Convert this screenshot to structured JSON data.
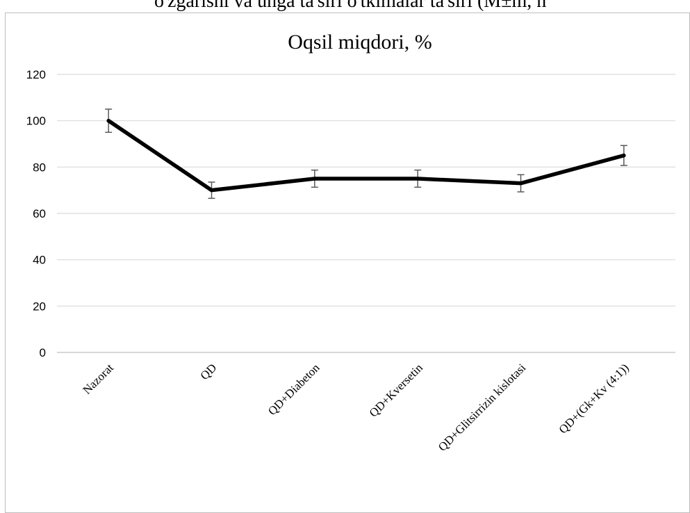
{
  "page": {
    "top_caption": "o'zgarishi va unga ta'siri o'tkimalar ta'siri (M±m, n"
  },
  "chart_data": {
    "type": "line",
    "title": "Oqsil miqdori, %",
    "xlabel": "",
    "ylabel": "",
    "categories": [
      "Nazorat",
      "QD",
      "QD+Diabeton",
      "QD+Kversetin",
      "QD+Glitsirrizin kislotasi",
      "QD+(Gk+Kv (4:1))"
    ],
    "series": [
      {
        "values": [
          100,
          70,
          75,
          75,
          73,
          85
        ],
        "errors": [
          5,
          3.5,
          3.7,
          3.7,
          3.7,
          4.3
        ],
        "color": "#000000"
      }
    ],
    "ylim": [
      0,
      120
    ],
    "yticks": [
      0,
      20,
      40,
      60,
      80,
      100,
      120
    ],
    "grid": true,
    "legend": "none"
  }
}
